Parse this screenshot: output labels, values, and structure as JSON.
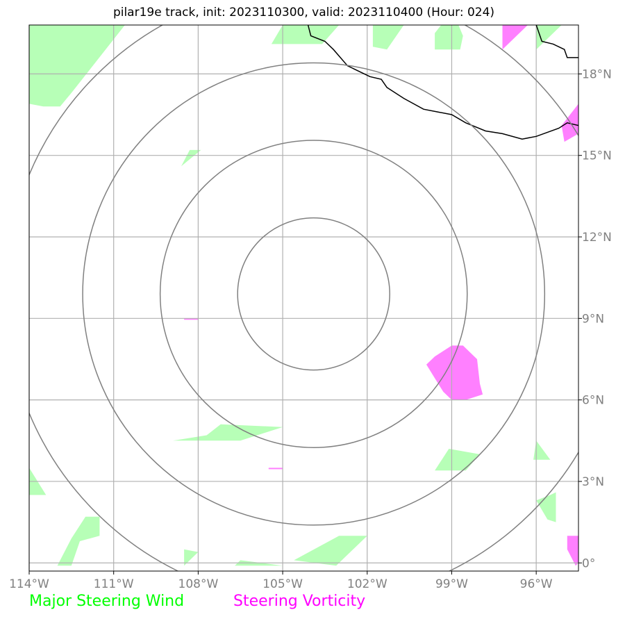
{
  "chart_data": {
    "type": "map",
    "title": "pilar19e track, init: 2023110300, valid: 2023110400 (Hour: 024)",
    "projection": "lat-lon",
    "lon_range": [
      -114,
      -94.5
    ],
    "lat_range": [
      -0.3,
      19.8
    ],
    "x_ticks": [
      {
        "value": -114,
        "label": "114°W"
      },
      {
        "value": -111,
        "label": "111°W"
      },
      {
        "value": -108,
        "label": "108°W"
      },
      {
        "value": -105,
        "label": "105°W"
      },
      {
        "value": -102,
        "label": "102°W"
      },
      {
        "value": -99,
        "label": "99°W"
      },
      {
        "value": -96,
        "label": "96°W"
      }
    ],
    "y_ticks": [
      {
        "value": 18,
        "label": "18°N"
      },
      {
        "value": 15,
        "label": "15°N"
      },
      {
        "value": 12,
        "label": "12°N"
      },
      {
        "value": 9,
        "label": "9°N"
      },
      {
        "value": 6,
        "label": "6°N"
      },
      {
        "value": 3,
        "label": "3°N"
      },
      {
        "value": 0,
        "label": "0°"
      }
    ],
    "grid": true,
    "rings": {
      "center": [
        -103.9,
        9.9
      ],
      "radii_deg": [
        2.7,
        5.45,
        8.2,
        10.95
      ],
      "color": "#808080"
    },
    "coastline": [
      [
        -104.1,
        19.8
      ],
      [
        -104.0,
        19.4
      ],
      [
        -103.5,
        19.2
      ],
      [
        -103.2,
        18.9
      ],
      [
        -102.7,
        18.3
      ],
      [
        -102.1,
        18.0
      ],
      [
        -101.9,
        17.9
      ],
      [
        -101.5,
        17.8
      ],
      [
        -101.3,
        17.5
      ],
      [
        -100.7,
        17.1
      ],
      [
        -100.0,
        16.7
      ],
      [
        -99.5,
        16.6
      ],
      [
        -99.0,
        16.5
      ],
      [
        -98.5,
        16.2
      ],
      [
        -97.8,
        15.9
      ],
      [
        -97.2,
        15.8
      ],
      [
        -96.5,
        15.6
      ],
      [
        -96.0,
        15.7
      ],
      [
        -95.2,
        16.0
      ],
      [
        -94.9,
        16.2
      ],
      [
        -94.5,
        16.1
      ]
    ],
    "coastline_ne": [
      [
        -96.0,
        19.8
      ],
      [
        -95.8,
        19.2
      ],
      [
        -95.4,
        19.1
      ],
      [
        -95.0,
        18.9
      ],
      [
        -94.9,
        18.6
      ],
      [
        -94.5,
        18.6
      ]
    ],
    "series": [
      {
        "name": "Major Steering Wind",
        "color": "#00ff00",
        "fill": "#b7ffb7",
        "polygons": [
          [
            [
              -114,
              19.8
            ],
            [
              -110.6,
              19.8
            ],
            [
              -112.5,
              17.3
            ],
            [
              -112.9,
              16.8
            ],
            [
              -113.5,
              16.8
            ],
            [
              -114,
              16.9
            ]
          ],
          [
            [
              -105.4,
              19.1
            ],
            [
              -103.6,
              19.1
            ],
            [
              -103.0,
              19.8
            ],
            [
              -105.0,
              19.8
            ]
          ],
          [
            [
              -101.8,
              19.8
            ],
            [
              -100.7,
              19.8
            ],
            [
              -101.3,
              18.9
            ],
            [
              -101.8,
              19.0
            ]
          ],
          [
            [
              -99.6,
              18.9
            ],
            [
              -98.7,
              18.9
            ],
            [
              -98.6,
              19.4
            ],
            [
              -98.8,
              19.9
            ],
            [
              -99.3,
              19.9
            ],
            [
              -99.6,
              19.5
            ]
          ],
          [
            [
              -96.0,
              19.8
            ],
            [
              -95.1,
              19.8
            ],
            [
              -96.0,
              18.9
            ]
          ],
          [
            [
              -108.6,
              14.6
            ],
            [
              -108.3,
              15.2
            ],
            [
              -107.9,
              15.2
            ]
          ],
          [
            [
              -108.9,
              4.5
            ],
            [
              -107.7,
              4.7
            ],
            [
              -107.2,
              5.1
            ],
            [
              -105.0,
              5.0
            ],
            [
              -106.5,
              4.5
            ]
          ],
          [
            [
              -99.6,
              3.4
            ],
            [
              -98.5,
              3.4
            ],
            [
              -98.0,
              4.0
            ],
            [
              -99.1,
              4.2
            ]
          ],
          [
            [
              -96.1,
              3.8
            ],
            [
              -95.5,
              3.8
            ],
            [
              -96.0,
              4.5
            ]
          ],
          [
            [
              -114,
              2.5
            ],
            [
              -113.4,
              2.5
            ],
            [
              -114,
              3.5
            ]
          ],
          [
            [
              -96.0,
              2.3
            ],
            [
              -95.6,
              1.6
            ],
            [
              -95.3,
              1.5
            ],
            [
              -95.3,
              2.6
            ],
            [
              -95.5,
              2.5
            ]
          ],
          [
            [
              -113.0,
              -0.1
            ],
            [
              -112.5,
              0.9
            ],
            [
              -112.0,
              1.7
            ],
            [
              -111.5,
              1.7
            ],
            [
              -111.5,
              1.0
            ],
            [
              -112.2,
              0.8
            ],
            [
              -112.5,
              -0.1
            ]
          ],
          [
            [
              -108.5,
              -0.1
            ],
            [
              -108.0,
              0.4
            ],
            [
              -108.5,
              0.5
            ]
          ],
          [
            [
              -103.1,
              -0.1
            ],
            [
              -102.0,
              1.0
            ],
            [
              -103.0,
              1.0
            ],
            [
              -104.6,
              0.1
            ]
          ],
          [
            [
              -106.7,
              -0.1
            ],
            [
              -105.0,
              -0.1
            ],
            [
              -106.5,
              0.1
            ]
          ]
        ]
      },
      {
        "name": "Steering Vorticity",
        "color": "#ff00ff",
        "fill": "#ff80ff",
        "polygons": [
          [
            [
              -97.2,
              19.8
            ],
            [
              -96.3,
              19.8
            ],
            [
              -97.2,
              18.9
            ]
          ],
          [
            [
              -95.1,
              16.1
            ],
            [
              -94.5,
              16.9
            ],
            [
              -94.5,
              15.8
            ],
            [
              -95.0,
              15.5
            ]
          ],
          [
            [
              -99.0,
              8.0
            ],
            [
              -98.6,
              8.0
            ],
            [
              -98.1,
              7.5
            ],
            [
              -98.0,
              6.6
            ],
            [
              -97.9,
              6.2
            ],
            [
              -98.5,
              6.0
            ],
            [
              -99.0,
              6.0
            ],
            [
              -99.3,
              6.3
            ],
            [
              -99.6,
              6.8
            ],
            [
              -99.9,
              7.3
            ],
            [
              -99.6,
              7.6
            ]
          ],
          [
            [
              -108.5,
              9.0
            ],
            [
              -108.0,
              9.0
            ],
            [
              -108.0,
              8.95
            ],
            [
              -108.5,
              8.95
            ]
          ],
          [
            [
              -105.5,
              3.5
            ],
            [
              -105.0,
              3.5
            ],
            [
              -105.0,
              3.45
            ],
            [
              -105.5,
              3.45
            ]
          ],
          [
            [
              -94.9,
              1.0
            ],
            [
              -94.5,
              1.0
            ],
            [
              -94.5,
              0.0
            ],
            [
              -94.6,
              -0.1
            ],
            [
              -94.9,
              0.5
            ]
          ]
        ]
      }
    ],
    "legend": {
      "position": "bottom-left",
      "entries": [
        {
          "label": "Major Steering Wind",
          "color": "#00ff00"
        },
        {
          "label": "Steering Vorticity",
          "color": "#ff00ff"
        }
      ]
    }
  }
}
